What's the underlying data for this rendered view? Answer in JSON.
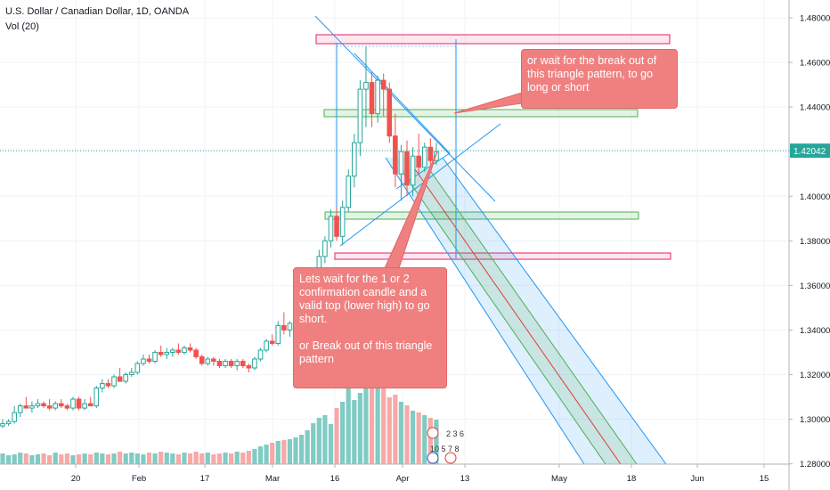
{
  "header": {
    "symbol_line": "U.S. Dollar / Canadian Dollar, 1D, OANDA",
    "indicator_line": "Vol (20)"
  },
  "notes": {
    "top": "or wait for the break out of this triangle pattern, to go long or short",
    "bottom": "Lets wait for the 1 or 2 confirmation candle and a valid top (lower high) to go short.\n\nor Break out of this triangle pattern"
  },
  "price_badge": "1.42042",
  "chart_data": {
    "type": "candlestick",
    "title": "U.S. Dollar / Canadian Dollar, 1D, OANDA",
    "y_axis": {
      "ticks": [
        "1.48000",
        "1.46000",
        "1.44000",
        "1.42000",
        "1.40000",
        "1.38000",
        "1.36000",
        "1.34000",
        "1.32000",
        "1.30000",
        "1.28000"
      ],
      "ylim": [
        1.278,
        1.484
      ],
      "side": "right"
    },
    "x_axis": {
      "ticks": [
        "20",
        "Feb",
        "17",
        "Mar",
        "16",
        "Apr",
        "13",
        "May",
        "18",
        "Jun",
        "15"
      ]
    },
    "last_price": 1.42042,
    "colors": {
      "up": "#26a69a",
      "down": "#ef5350",
      "vol_up": "#80cbc4",
      "vol_down": "#f7a9a7",
      "accent": "#2196f3"
    },
    "candles": [
      [
        1.297,
        1.3,
        1.296,
        1.298
      ],
      [
        1.298,
        1.3,
        1.297,
        1.299
      ],
      [
        1.299,
        1.306,
        1.298,
        1.303
      ],
      [
        1.303,
        1.307,
        1.301,
        1.306
      ],
      [
        1.306,
        1.31,
        1.305,
        1.305
      ],
      [
        1.305,
        1.308,
        1.303,
        1.306
      ],
      [
        1.306,
        1.309,
        1.305,
        1.307
      ],
      [
        1.307,
        1.308,
        1.305,
        1.306
      ],
      [
        1.306,
        1.309,
        1.304,
        1.305
      ],
      [
        1.305,
        1.308,
        1.304,
        1.307
      ],
      [
        1.307,
        1.309,
        1.305,
        1.306
      ],
      [
        1.306,
        1.307,
        1.304,
        1.305
      ],
      [
        1.305,
        1.31,
        1.304,
        1.309
      ],
      [
        1.309,
        1.31,
        1.304,
        1.305
      ],
      [
        1.305,
        1.309,
        1.304,
        1.307
      ],
      [
        1.307,
        1.31,
        1.306,
        1.306
      ],
      [
        1.306,
        1.315,
        1.305,
        1.314
      ],
      [
        1.314,
        1.318,
        1.312,
        1.316
      ],
      [
        1.316,
        1.318,
        1.314,
        1.315
      ],
      [
        1.315,
        1.32,
        1.314,
        1.319
      ],
      [
        1.319,
        1.323,
        1.318,
        1.317
      ],
      [
        1.317,
        1.321,
        1.316,
        1.32
      ],
      [
        1.32,
        1.323,
        1.319,
        1.321
      ],
      [
        1.321,
        1.326,
        1.32,
        1.325
      ],
      [
        1.325,
        1.329,
        1.324,
        1.327
      ],
      [
        1.327,
        1.329,
        1.325,
        1.326
      ],
      [
        1.326,
        1.331,
        1.325,
        1.33
      ],
      [
        1.33,
        1.333,
        1.328,
        1.329
      ],
      [
        1.329,
        1.332,
        1.327,
        1.33
      ],
      [
        1.33,
        1.332,
        1.328,
        1.331
      ],
      [
        1.331,
        1.334,
        1.329,
        1.33
      ],
      [
        1.33,
        1.333,
        1.329,
        1.332
      ],
      [
        1.332,
        1.334,
        1.33,
        1.331
      ],
      [
        1.331,
        1.332,
        1.327,
        1.328
      ],
      [
        1.328,
        1.329,
        1.324,
        1.325
      ],
      [
        1.325,
        1.328,
        1.324,
        1.327
      ],
      [
        1.327,
        1.328,
        1.324,
        1.326
      ],
      [
        1.326,
        1.327,
        1.323,
        1.324
      ],
      [
        1.324,
        1.327,
        1.323,
        1.326
      ],
      [
        1.326,
        1.327,
        1.323,
        1.324
      ],
      [
        1.324,
        1.327,
        1.322,
        1.326
      ],
      [
        1.326,
        1.327,
        1.323,
        1.324
      ],
      [
        1.324,
        1.325,
        1.321,
        1.323
      ],
      [
        1.323,
        1.328,
        1.322,
        1.327
      ],
      [
        1.327,
        1.332,
        1.326,
        1.331
      ],
      [
        1.331,
        1.336,
        1.33,
        1.335
      ],
      [
        1.335,
        1.338,
        1.333,
        1.334
      ],
      [
        1.334,
        1.344,
        1.333,
        1.342
      ],
      [
        1.342,
        1.348,
        1.338,
        1.34
      ],
      [
        1.34,
        1.344,
        1.337,
        1.343
      ],
      [
        1.343,
        1.347,
        1.34,
        1.344
      ],
      [
        1.344,
        1.35,
        1.342,
        1.348
      ],
      [
        1.348,
        1.358,
        1.346,
        1.356
      ],
      [
        1.356,
        1.366,
        1.354,
        1.364
      ],
      [
        1.364,
        1.376,
        1.362,
        1.373
      ],
      [
        1.373,
        1.382,
        1.37,
        1.38
      ],
      [
        1.38,
        1.394,
        1.377,
        1.391
      ],
      [
        1.391,
        1.395,
        1.38,
        1.382
      ],
      [
        1.382,
        1.398,
        1.378,
        1.395
      ],
      [
        1.395,
        1.412,
        1.393,
        1.409
      ],
      [
        1.409,
        1.428,
        1.404,
        1.424
      ],
      [
        1.424,
        1.452,
        1.418,
        1.448
      ],
      [
        1.448,
        1.467,
        1.431,
        1.451
      ],
      [
        1.451,
        1.456,
        1.431,
        1.437
      ],
      [
        1.437,
        1.454,
        1.433,
        1.452
      ],
      [
        1.452,
        1.455,
        1.436,
        1.448
      ],
      [
        1.448,
        1.451,
        1.424,
        1.427
      ],
      [
        1.427,
        1.437,
        1.404,
        1.41
      ],
      [
        1.41,
        1.423,
        1.398,
        1.42
      ],
      [
        1.42,
        1.425,
        1.4,
        1.405
      ],
      [
        1.405,
        1.422,
        1.4,
        1.418
      ],
      [
        1.418,
        1.428,
        1.41,
        1.413
      ],
      [
        1.413,
        1.424,
        1.411,
        1.422
      ],
      [
        1.422,
        1.426,
        1.414,
        1.416
      ],
      [
        1.416,
        1.424,
        1.414,
        1.42
      ]
    ],
    "volumes": [
      12,
      10,
      11,
      13,
      12,
      10,
      11,
      12,
      10,
      13,
      11,
      12,
      10,
      11,
      12,
      11,
      13,
      12,
      11,
      12,
      14,
      12,
      13,
      12,
      11,
      13,
      12,
      14,
      13,
      12,
      11,
      13,
      12,
      14,
      12,
      13,
      11,
      12,
      13,
      12,
      14,
      13,
      15,
      17,
      20,
      22,
      24,
      26,
      27,
      28,
      30,
      33,
      38,
      46,
      52,
      55,
      45,
      63,
      70,
      85,
      72,
      80,
      95,
      88,
      90,
      86,
      75,
      78,
      70,
      66,
      60,
      58,
      55,
      52,
      50
    ]
  }
}
